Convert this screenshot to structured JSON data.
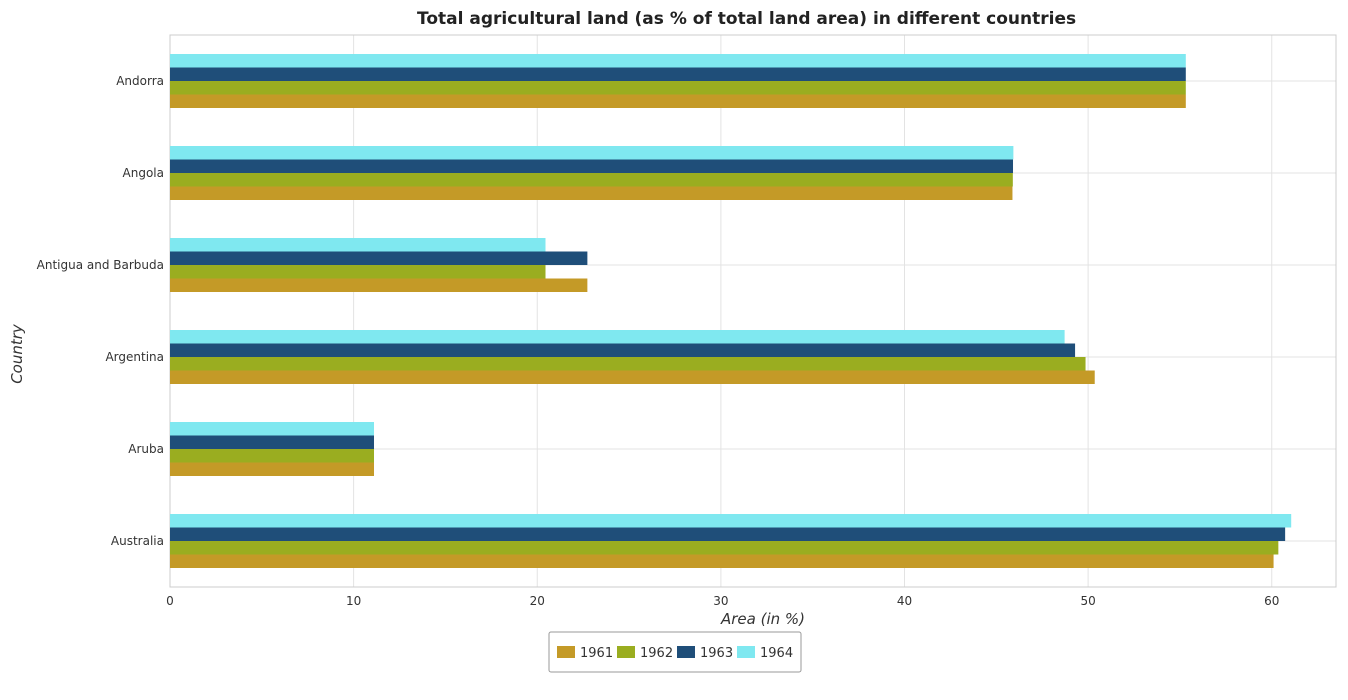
{
  "chart_data": {
    "type": "bar",
    "orientation": "horizontal",
    "title": "Total agricultural land (as % of total land area) in different countries",
    "xlabel": "Area (in %)",
    "ylabel": "Country",
    "xlim": [
      0,
      63.5
    ],
    "xticks": [
      0,
      10,
      20,
      30,
      40,
      50,
      60
    ],
    "grid": true,
    "legend_position": "bottom-center",
    "categories": [
      "Andorra",
      "Angola",
      "Antigua and Barbuda",
      "Argentina",
      "Aruba",
      "Australia"
    ],
    "series": [
      {
        "name": "1961",
        "color": "#c49a27",
        "values": [
          55.32,
          45.88,
          22.73,
          50.36,
          11.11,
          60.1
        ]
      },
      {
        "name": "1962",
        "color": "#9aad20",
        "values": [
          55.32,
          45.9,
          20.45,
          49.86,
          11.11,
          60.36
        ]
      },
      {
        "name": "1963",
        "color": "#1f4e79",
        "values": [
          55.32,
          45.91,
          22.73,
          49.29,
          11.11,
          60.73
        ]
      },
      {
        "name": "1964",
        "color": "#7fe8f0",
        "values": [
          55.32,
          45.93,
          20.45,
          48.72,
          11.11,
          61.06
        ]
      }
    ]
  }
}
